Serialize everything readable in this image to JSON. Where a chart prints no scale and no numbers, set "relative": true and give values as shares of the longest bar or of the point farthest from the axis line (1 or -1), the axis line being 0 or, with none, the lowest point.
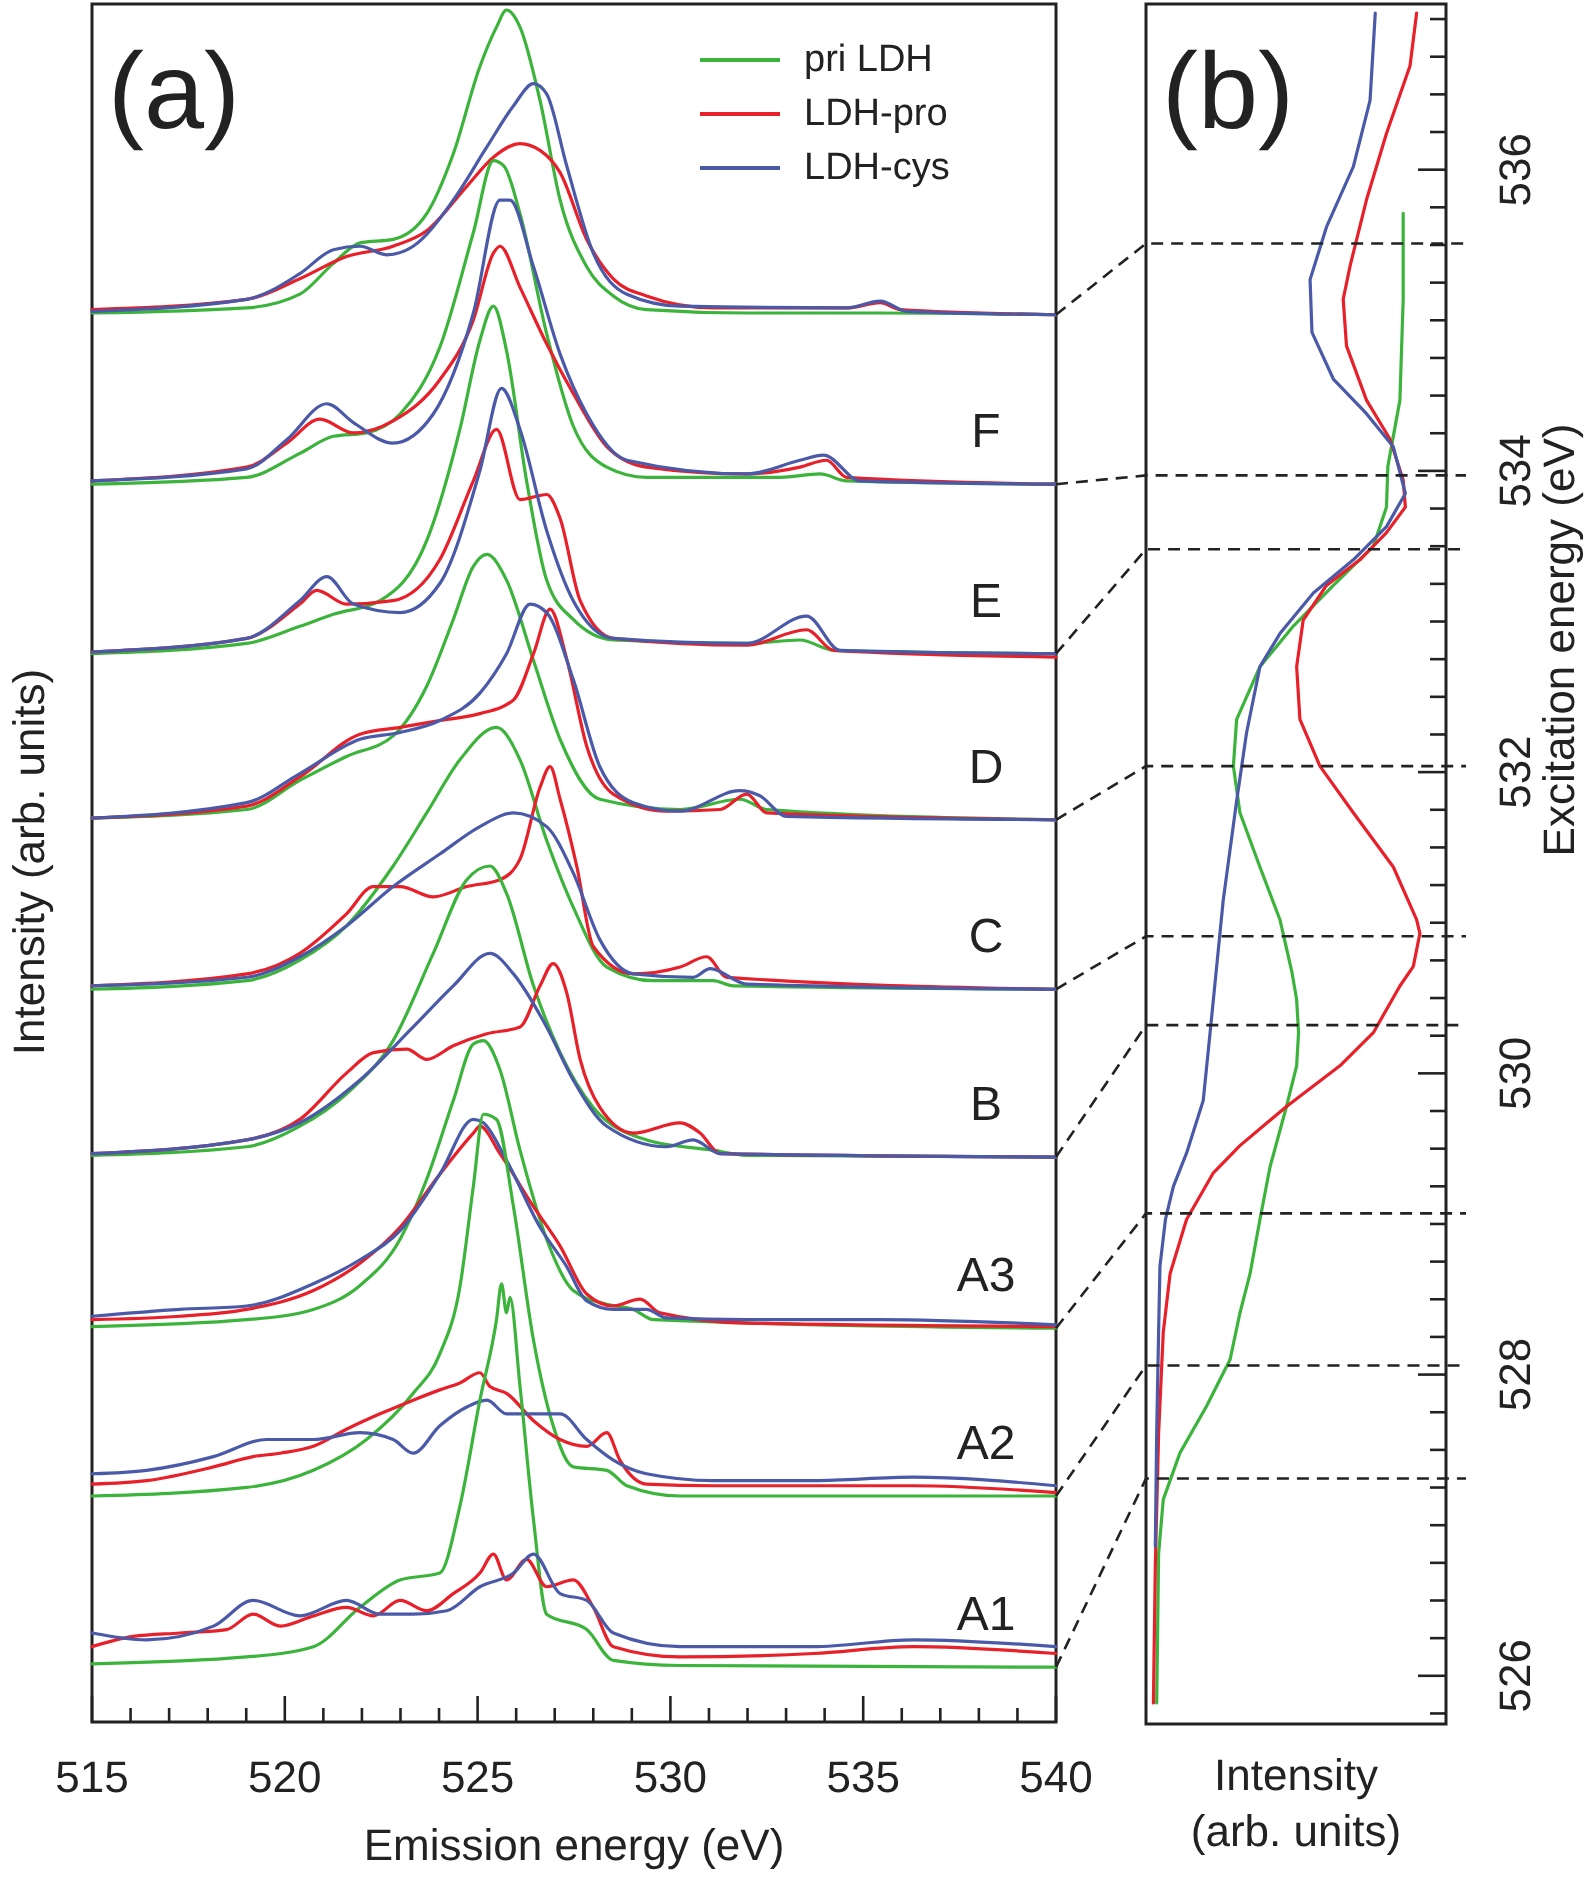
{
  "chart_data": [
    {
      "type": "line",
      "title": "(a)",
      "xlabel": "Emission energy (eV)",
      "ylabel": "Intensity (arb. units)",
      "relative": true,
      "legend": "top right",
      "tick_labels": "x",
      "xlim": [
        515,
        540
      ],
      "xticks": [
        515,
        {
          "value": 516,
          "label": null
        },
        {
          "value": 517,
          "label": null
        },
        {
          "value": 518,
          "label": null
        },
        {
          "value": 519,
          "label": null
        },
        520,
        {
          "value": 521,
          "label": null
        },
        {
          "value": 522,
          "label": null
        },
        {
          "value": 523,
          "label": null
        },
        {
          "value": 524,
          "label": null
        },
        525,
        {
          "value": 526,
          "label": null
        },
        {
          "value": 527,
          "label": null
        },
        {
          "value": 528,
          "label": null
        },
        {
          "value": 529,
          "label": null
        },
        530,
        {
          "value": 531,
          "label": null
        },
        {
          "value": 532,
          "label": null
        },
        {
          "value": 533,
          "label": null
        },
        {
          "value": 534,
          "label": null
        },
        535,
        {
          "value": 536,
          "label": null
        },
        {
          "value": 537,
          "label": null
        },
        {
          "value": 538,
          "label": null
        },
        {
          "value": 539,
          "label": null
        },
        540
      ],
      "series": [
        {
          "name": "pri LDH",
          "color": "#3cb43c",
          "x": [
            515,
            519.01,
            520.39,
            521.26,
            521.95,
            522.81,
            523.68,
            524.37,
            525.06,
            525.49,
            525.75,
            526.1,
            526.62,
            527.14,
            527.83,
            528.52,
            529.38,
            531.98,
            535.44,
            540
          ],
          "values": [
            0.823,
            0.826,
            0.834,
            0.852,
            0.864,
            0.866,
            0.881,
            0.916,
            0.967,
            0.99,
            1.0,
            0.99,
            0.947,
            0.889,
            0.85,
            0.833,
            0.825,
            0.823,
            0.823,
            0.822
          ]
        },
        {
          "name": "LDH-pro",
          "color": "#e8202a",
          "x": [
            515,
            519.01,
            520.39,
            521.6,
            522.81,
            523.68,
            524.72,
            525.41,
            526.1,
            526.62,
            527.14,
            527.83,
            528.52,
            529.38,
            531.11,
            534.57,
            535.44,
            535.95,
            540
          ],
          "values": [
            0.825,
            0.831,
            0.843,
            0.856,
            0.862,
            0.871,
            0.897,
            0.914,
            0.922,
            0.918,
            0.905,
            0.866,
            0.843,
            0.833,
            0.826,
            0.826,
            0.829,
            0.825,
            0.822
          ]
        },
        {
          "name": "LDH-cys",
          "color": "#4a5aa8",
          "x": [
            515,
            519.01,
            520.39,
            521.26,
            521.95,
            522.64,
            523.33,
            524.37,
            525.24,
            525.93,
            526.45,
            526.79,
            527.31,
            528.0,
            528.87,
            530.25,
            534.57,
            535.44,
            536.13,
            540
          ],
          "values": [
            0.824,
            0.831,
            0.846,
            0.86,
            0.862,
            0.857,
            0.862,
            0.889,
            0.92,
            0.944,
            0.957,
            0.951,
            0.909,
            0.858,
            0.834,
            0.827,
            0.826,
            0.83,
            0.824,
            0.822
          ]
        },
        {
          "color": "#3cb43c",
          "x": [
            515,
            519.01,
            520.39,
            521.26,
            522.12,
            522.99,
            524.02,
            524.89,
            525.41,
            525.68,
            526.1,
            526.79,
            527.48,
            528.35,
            529.38,
            532.84,
            533.88,
            534.57,
            540
          ],
          "values": [
            0.723,
            0.727,
            0.741,
            0.751,
            0.753,
            0.764,
            0.803,
            0.87,
            0.912,
            0.909,
            0.881,
            0.811,
            0.757,
            0.733,
            0.727,
            0.727,
            0.729,
            0.725,
            0.723
          ]
        },
        {
          "color": "#e8202a",
          "x": [
            515,
            519.01,
            520.05,
            520.91,
            521.78,
            522.81,
            524.02,
            524.89,
            525.41,
            525.58,
            526.1,
            526.79,
            527.48,
            528.35,
            529.38,
            531.98,
            533.36,
            534.05,
            534.57,
            540
          ],
          "values": [
            0.725,
            0.733,
            0.747,
            0.761,
            0.753,
            0.76,
            0.784,
            0.819,
            0.858,
            0.862,
            0.838,
            0.805,
            0.776,
            0.745,
            0.733,
            0.729,
            0.733,
            0.737,
            0.727,
            0.723
          ]
        },
        {
          "color": "#4a5aa8",
          "x": [
            515,
            519.01,
            520.05,
            521.09,
            521.78,
            522.81,
            523.85,
            524.89,
            525.58,
            525.84,
            526.45,
            527.14,
            527.83,
            528.87,
            531.98,
            533.36,
            533.97,
            534.92,
            540
          ],
          "values": [
            0.725,
            0.732,
            0.749,
            0.77,
            0.759,
            0.747,
            0.764,
            0.823,
            0.889,
            0.889,
            0.85,
            0.799,
            0.764,
            0.737,
            0.729,
            0.737,
            0.74,
            0.725,
            0.723
          ]
        },
        {
          "color": "#3cb43c",
          "x": [
            515,
            519.01,
            520.39,
            521.26,
            522.47,
            523.68,
            524.54,
            525.06,
            525.41,
            525.75,
            526.27,
            526.79,
            527.48,
            528.52,
            531.98,
            533.36,
            534.23,
            540
          ],
          "values": [
            0.624,
            0.63,
            0.64,
            0.647,
            0.655,
            0.69,
            0.755,
            0.807,
            0.827,
            0.801,
            0.725,
            0.667,
            0.644,
            0.632,
            0.63,
            0.632,
            0.626,
            0.624
          ]
        },
        {
          "color": "#e8202a",
          "x": [
            515,
            519.01,
            520.39,
            520.83,
            521.6,
            522.81,
            524.02,
            524.89,
            525.49,
            526.1,
            526.79,
            527.14,
            527.66,
            528.52,
            531.98,
            533.53,
            534.23,
            540
          ],
          "values": [
            0.625,
            0.633,
            0.653,
            0.661,
            0.653,
            0.655,
            0.679,
            0.725,
            0.755,
            0.714,
            0.717,
            0.703,
            0.655,
            0.633,
            0.629,
            0.638,
            0.626,
            0.622
          ]
        },
        {
          "color": "#4a5aa8",
          "x": [
            515,
            519.01,
            520.39,
            521.09,
            521.78,
            522.99,
            524.02,
            525.06,
            525.62,
            526.1,
            526.79,
            527.48,
            528.52,
            531.98,
            533.53,
            534.4,
            540
          ],
          "values": [
            0.625,
            0.633,
            0.655,
            0.669,
            0.653,
            0.648,
            0.665,
            0.731,
            0.779,
            0.755,
            0.696,
            0.655,
            0.633,
            0.63,
            0.646,
            0.626,
            0.624
          ]
        },
        {
          "color": "#3cb43c",
          "x": [
            515,
            519.01,
            520.39,
            521.6,
            522.81,
            523.68,
            524.37,
            524.89,
            525.24,
            525.75,
            526.45,
            527.14,
            528.17,
            530.25,
            531.8,
            532.5,
            540
          ],
          "values": [
            0.528,
            0.533,
            0.55,
            0.564,
            0.576,
            0.605,
            0.644,
            0.675,
            0.682,
            0.667,
            0.62,
            0.574,
            0.539,
            0.533,
            0.539,
            0.533,
            0.527
          ]
        },
        {
          "color": "#e8202a",
          "x": [
            515,
            519.01,
            520.39,
            521.95,
            522.99,
            524.02,
            525.06,
            525.93,
            526.45,
            526.88,
            527.31,
            527.83,
            528.52,
            529.9,
            531.29,
            531.98,
            532.5,
            540
          ],
          "values": [
            0.528,
            0.535,
            0.552,
            0.577,
            0.581,
            0.585,
            0.589,
            0.597,
            0.624,
            0.65,
            0.621,
            0.57,
            0.542,
            0.532,
            0.533,
            0.542,
            0.531,
            0.527
          ]
        },
        {
          "color": "#4a5aa8",
          "x": [
            515,
            519.01,
            520.39,
            521.95,
            522.99,
            524.02,
            525.06,
            525.75,
            526.36,
            526.79,
            527.48,
            528.17,
            529.04,
            530.25,
            531.8,
            532.32,
            533.01,
            540
          ],
          "values": [
            0.528,
            0.537,
            0.554,
            0.574,
            0.578,
            0.585,
            0.601,
            0.624,
            0.653,
            0.648,
            0.609,
            0.558,
            0.537,
            0.532,
            0.544,
            0.541,
            0.529,
            0.527
          ]
        },
        {
          "color": "#3cb43c",
          "x": [
            515,
            519.01,
            520.39,
            521.6,
            522.81,
            523.68,
            524.54,
            525.49,
            526.1,
            526.79,
            527.48,
            528.35,
            529.56,
            531.11,
            531.63,
            540
          ],
          "values": [
            0.428,
            0.433,
            0.445,
            0.465,
            0.5,
            0.531,
            0.562,
            0.581,
            0.562,
            0.515,
            0.476,
            0.441,
            0.433,
            0.433,
            0.43,
            0.428
          ]
        },
        {
          "color": "#e8202a",
          "x": [
            515,
            519.01,
            520.39,
            521.6,
            522.3,
            522.99,
            523.85,
            524.72,
            525.58,
            526.1,
            526.62,
            526.88,
            527.14,
            527.57,
            528.0,
            529.04,
            530.25,
            530.94,
            531.46,
            540
          ],
          "values": [
            0.43,
            0.437,
            0.449,
            0.472,
            0.488,
            0.488,
            0.482,
            0.488,
            0.492,
            0.504,
            0.546,
            0.558,
            0.539,
            0.5,
            0.453,
            0.437,
            0.441,
            0.447,
            0.435,
            0.428
          ]
        },
        {
          "color": "#4a5aa8",
          "x": [
            515,
            519.01,
            520.39,
            521.6,
            522.81,
            524.02,
            525.06,
            525.93,
            526.79,
            527.48,
            528.17,
            529.04,
            530.59,
            531.03,
            531.98,
            540
          ],
          "values": [
            0.43,
            0.435,
            0.447,
            0.465,
            0.488,
            0.507,
            0.523,
            0.531,
            0.523,
            0.496,
            0.457,
            0.437,
            0.435,
            0.44,
            0.431,
            0.428
          ]
        },
        {
          "color": "#3cb43c",
          "x": [
            515,
            519.01,
            520.39,
            521.6,
            522.81,
            523.85,
            524.72,
            525.32,
            525.75,
            526.45,
            527.14,
            528.0,
            529.38,
            531.11,
            531.98,
            540
          ],
          "values": [
            0.331,
            0.336,
            0.348,
            0.367,
            0.398,
            0.449,
            0.492,
            0.5,
            0.484,
            0.43,
            0.391,
            0.359,
            0.34,
            0.334,
            0.331,
            0.33
          ]
        },
        {
          "color": "#e8202a",
          "x": [
            515,
            519.01,
            520.39,
            521.6,
            522.3,
            523.16,
            523.68,
            524.37,
            525.24,
            526.1,
            526.62,
            526.96,
            527.31,
            527.66,
            528.17,
            529.04,
            530.25,
            530.77,
            531.29,
            540
          ],
          "values": [
            0.332,
            0.34,
            0.352,
            0.379,
            0.391,
            0.393,
            0.387,
            0.395,
            0.402,
            0.406,
            0.43,
            0.443,
            0.426,
            0.387,
            0.359,
            0.344,
            0.35,
            0.344,
            0.332,
            0.33
          ]
        },
        {
          "color": "#4a5aa8",
          "x": [
            515,
            519.01,
            520.39,
            521.95,
            523.33,
            524.37,
            525.32,
            525.93,
            526.79,
            527.48,
            528.35,
            529.9,
            530.59,
            531.29,
            540
          ],
          "values": [
            0.332,
            0.34,
            0.35,
            0.375,
            0.406,
            0.43,
            0.449,
            0.437,
            0.406,
            0.375,
            0.348,
            0.336,
            0.34,
            0.332,
            0.33
          ]
        },
        {
          "color": "#3cb43c",
          "x": [
            515,
            519.01,
            520.74,
            521.95,
            522.99,
            523.68,
            524.37,
            524.89,
            525.15,
            525.58,
            526.1,
            526.79,
            527.48,
            528.35,
            529.04,
            529.56,
            540
          ],
          "values": [
            0.231,
            0.235,
            0.241,
            0.255,
            0.282,
            0.317,
            0.363,
            0.396,
            0.398,
            0.381,
            0.334,
            0.282,
            0.252,
            0.244,
            0.241,
            0.235,
            0.23
          ]
        },
        {
          "color": "#e8202a",
          "x": [
            515,
            517.28,
            519.01,
            520.74,
            521.95,
            522.99,
            524.02,
            524.89,
            525.06,
            525.58,
            526.45,
            527.14,
            527.83,
            528.52,
            529.21,
            529.73,
            531.98,
            540
          ],
          "values": [
            0.235,
            0.237,
            0.241,
            0.252,
            0.268,
            0.289,
            0.32,
            0.344,
            0.348,
            0.332,
            0.301,
            0.278,
            0.25,
            0.243,
            0.247,
            0.239,
            0.233,
            0.231
          ]
        },
        {
          "color": "#4a5aa8",
          "x": [
            515,
            517.28,
            519.01,
            520.74,
            521.95,
            522.99,
            524.02,
            524.89,
            525.15,
            525.75,
            526.62,
            527.31,
            527.83,
            528.52,
            529.38,
            529.9,
            531.98,
            535.44,
            540
          ],
          "values": [
            0.237,
            0.241,
            0.243,
            0.256,
            0.27,
            0.287,
            0.32,
            0.352,
            0.35,
            0.328,
            0.289,
            0.266,
            0.246,
            0.241,
            0.241,
            0.236,
            0.235,
            0.235,
            0.232
          ]
        },
        {
          "color": "#3cb43c",
          "x": [
            515,
            519.01,
            520.74,
            522.12,
            523.33,
            524.02,
            524.54,
            524.89,
            525.15,
            525.49,
            525.93,
            526.45,
            526.96,
            527.48,
            528.35,
            528.87,
            530.25,
            540
          ],
          "values": [
            0.132,
            0.137,
            0.147,
            0.165,
            0.192,
            0.215,
            0.254,
            0.313,
            0.355,
            0.352,
            0.301,
            0.223,
            0.173,
            0.149,
            0.147,
            0.138,
            0.132,
            0.132
          ]
        },
        {
          "color": "#e8202a",
          "x": [
            515,
            516.42,
            518.15,
            519.18,
            519.88,
            520.74,
            521.6,
            522.47,
            523.33,
            524.02,
            524.54,
            525.06,
            525.32,
            525.75,
            526.45,
            527.14,
            527.83,
            528.35,
            528.69,
            529.38,
            531.11,
            533.71,
            536.3,
            540
          ],
          "values": [
            0.139,
            0.141,
            0.149,
            0.155,
            0.157,
            0.161,
            0.171,
            0.18,
            0.188,
            0.194,
            0.198,
            0.204,
            0.196,
            0.192,
            0.176,
            0.165,
            0.161,
            0.169,
            0.153,
            0.139,
            0.138,
            0.138,
            0.138,
            0.134
          ]
        },
        {
          "color": "#4a5aa8",
          "x": [
            515,
            516.42,
            518.15,
            519.53,
            520.74,
            521.95,
            522.81,
            523.33,
            524.02,
            524.72,
            525.24,
            525.75,
            526.45,
            527.14,
            527.83,
            528.52,
            529.38,
            531.11,
            533.71,
            536.3,
            540
          ],
          "values": [
            0.145,
            0.147,
            0.155,
            0.165,
            0.165,
            0.169,
            0.165,
            0.157,
            0.173,
            0.184,
            0.188,
            0.18,
            0.18,
            0.18,
            0.165,
            0.153,
            0.145,
            0.141,
            0.141,
            0.143,
            0.138
          ]
        },
        {
          "color": "#3cb43c",
          "x": [
            515,
            519.01,
            520.74,
            521.95,
            522.99,
            524.02,
            524.54,
            525.06,
            525.49,
            525.62,
            525.75,
            525.84,
            526.1,
            526.45,
            526.79,
            527.83,
            528.52,
            530.25,
            540
          ],
          "values": [
            0.034,
            0.038,
            0.044,
            0.067,
            0.083,
            0.087,
            0.126,
            0.188,
            0.235,
            0.256,
            0.239,
            0.248,
            0.196,
            0.118,
            0.063,
            0.054,
            0.036,
            0.033,
            0.032
          ]
        },
        {
          "color": "#e8202a",
          "x": [
            515,
            516.07,
            517.28,
            518.49,
            519.18,
            519.88,
            520.74,
            521.6,
            522.3,
            522.99,
            523.68,
            524.37,
            525.06,
            525.41,
            525.75,
            526.27,
            526.79,
            527.48,
            528.0,
            528.52,
            530.25,
            533.71,
            536.3,
            540
          ],
          "values": [
            0.044,
            0.05,
            0.052,
            0.054,
            0.063,
            0.056,
            0.062,
            0.067,
            0.062,
            0.071,
            0.065,
            0.075,
            0.087,
            0.098,
            0.083,
            0.095,
            0.079,
            0.083,
            0.067,
            0.044,
            0.038,
            0.04,
            0.044,
            0.04
          ]
        },
        {
          "color": "#4a5aa8",
          "x": [
            515,
            516.42,
            518.15,
            519.18,
            520.39,
            521.6,
            522.47,
            523.33,
            524.2,
            525.06,
            525.93,
            526.45,
            527.14,
            527.83,
            528.52,
            530.25,
            533.71,
            536.3,
            540
          ],
          "values": [
            0.052,
            0.048,
            0.056,
            0.071,
            0.062,
            0.071,
            0.063,
            0.063,
            0.065,
            0.079,
            0.087,
            0.098,
            0.075,
            0.071,
            0.052,
            0.044,
            0.044,
            0.048,
            0.044
          ]
        }
      ],
      "annotations": [
        "F",
        "E",
        "D",
        "C",
        "B",
        "A3",
        "A2",
        "A1"
      ]
    },
    {
      "type": "line",
      "title": "(b)",
      "xlabel": "Intensity (arb. units)",
      "ylabel": "Excitation energy (eV)",
      "relative": true,
      "orientation": "horizontal",
      "tick_labels": "y",
      "ylim": [
        525.68,
        537.1
      ],
      "yticks": [
        {
          "value": 525.75,
          "label": null
        },
        526,
        {
          "value": 526.25,
          "label": null
        },
        {
          "value": 526.5,
          "label": null
        },
        {
          "value": 526.75,
          "label": null
        },
        {
          "value": 527,
          "label": null
        },
        {
          "value": 527.25,
          "label": null
        },
        {
          "value": 527.5,
          "label": null
        },
        {
          "value": 527.75,
          "label": null
        },
        528,
        {
          "value": 528.25,
          "label": null
        },
        {
          "value": 528.5,
          "label": null
        },
        {
          "value": 528.75,
          "label": null
        },
        {
          "value": 529,
          "label": null
        },
        {
          "value": 529.25,
          "label": null
        },
        {
          "value": 529.5,
          "label": null
        },
        {
          "value": 529.75,
          "label": null
        },
        530,
        {
          "value": 530.25,
          "label": null
        },
        {
          "value": 530.5,
          "label": null
        },
        {
          "value": 530.75,
          "label": null
        },
        {
          "value": 531,
          "label": null
        },
        {
          "value": 531.25,
          "label": null
        },
        {
          "value": 531.5,
          "label": null
        },
        {
          "value": 531.75,
          "label": null
        },
        532,
        {
          "value": 532.25,
          "label": null
        },
        {
          "value": 532.5,
          "label": null
        },
        {
          "value": 532.75,
          "label": null
        },
        {
          "value": 533,
          "label": null
        },
        {
          "value": 533.25,
          "label": null
        },
        {
          "value": 533.5,
          "label": null
        },
        {
          "value": 533.75,
          "label": null
        },
        534,
        {
          "value": 534.25,
          "label": null
        },
        {
          "value": 534.5,
          "label": null
        },
        {
          "value": 534.75,
          "label": null
        },
        {
          "value": 535,
          "label": null
        },
        {
          "value": 535.25,
          "label": null
        },
        {
          "value": 535.5,
          "label": null
        },
        {
          "value": 535.75,
          "label": null
        },
        536,
        {
          "value": 536.25,
          "label": null
        },
        {
          "value": 536.5,
          "label": null
        },
        {
          "value": 536.75,
          "label": null
        },
        {
          "value": 537,
          "label": null
        }
      ],
      "series": [
        {
          "color": "#3cb43c",
          "x": [
            535.71,
            535.14,
            534.47,
            534.03,
            533.76,
            533.5,
            533.24,
            532.97,
            532.7,
            532.35,
            532.04,
            531.73,
            531.37,
            531.02,
            530.67,
            530.49,
            530.27,
            530.05,
            529.78,
            529.38,
            529.03,
            528.67,
            528.41,
            528.1,
            527.79,
            527.48,
            527.17,
            526.81,
            525.82
          ],
          "values": [
            0.939,
            0.939,
            0.927,
            0.883,
            0.878,
            0.83,
            0.684,
            0.538,
            0.416,
            0.331,
            0.319,
            0.343,
            0.416,
            0.489,
            0.533,
            0.55,
            0.557,
            0.55,
            0.513,
            0.453,
            0.416,
            0.38,
            0.343,
            0.307,
            0.221,
            0.124,
            0.063,
            0.046,
            0.039
          ]
        },
        {
          "color": "#e8202a",
          "x": [
            537.04,
            536.69,
            536.24,
            535.8,
            535.36,
            535.14,
            534.83,
            534.47,
            534.21,
            533.94,
            533.76,
            533.59,
            533.41,
            533.24,
            533.01,
            532.7,
            532.35,
            532.04,
            531.73,
            531.37,
            531.02,
            530.93,
            530.71,
            530.58,
            530.27,
            530.05,
            529.78,
            529.52,
            529.34,
            529.03,
            528.67,
            528.28,
            527.61,
            526.73,
            525.82
          ],
          "values": [
            0.988,
            0.964,
            0.878,
            0.805,
            0.745,
            0.72,
            0.732,
            0.805,
            0.891,
            0.939,
            0.947,
            0.878,
            0.781,
            0.659,
            0.574,
            0.55,
            0.562,
            0.635,
            0.757,
            0.903,
            0.988,
            1.0,
            0.976,
            0.927,
            0.83,
            0.708,
            0.513,
            0.343,
            0.246,
            0.148,
            0.088,
            0.063,
            0.046,
            0.034,
            0.027
          ]
        },
        {
          "color": "#4a5aa8",
          "x": [
            537.04,
            536.46,
            536.02,
            535.62,
            535.27,
            534.92,
            534.61,
            534.38,
            534.16,
            533.85,
            533.63,
            533.41,
            533.19,
            532.92,
            532.7,
            532.26,
            531.81,
            531.15,
            530.49,
            530.27,
            529.82,
            529.47,
            529.25,
            529.03,
            528.72,
            528.28,
            527.61,
            526.86
          ],
          "values": [
            0.837,
            0.818,
            0.757,
            0.659,
            0.599,
            0.606,
            0.684,
            0.805,
            0.903,
            0.947,
            0.878,
            0.757,
            0.611,
            0.489,
            0.416,
            0.367,
            0.331,
            0.282,
            0.246,
            0.234,
            0.209,
            0.148,
            0.1,
            0.071,
            0.051,
            0.046,
            0.039,
            0.034
          ]
        }
      ],
      "ref_lines": [
        {
          "axis": "y",
          "value": 535.51,
          "color": "#222222",
          "line_style": "dashed"
        },
        {
          "axis": "y",
          "value": 533.97,
          "color": "#222222",
          "line_style": "dashed"
        },
        {
          "axis": "y",
          "value": 533.48,
          "color": "#222222",
          "line_style": "dashed"
        },
        {
          "axis": "y",
          "value": 532.04,
          "color": "#222222",
          "line_style": "dashed"
        },
        {
          "axis": "y",
          "value": 530.91,
          "color": "#222222",
          "line_style": "dashed"
        },
        {
          "axis": "y",
          "value": 530.32,
          "color": "#222222",
          "line_style": "dashed"
        },
        {
          "axis": "y",
          "value": 529.07,
          "color": "#222222",
          "line_style": "dashed"
        },
        {
          "axis": "y",
          "value": 528.06,
          "color": "#222222",
          "line_style": "dashed"
        },
        {
          "axis": "y",
          "value": 527.31,
          "color": "#222222",
          "line_style": "dashed"
        }
      ]
    }
  ]
}
